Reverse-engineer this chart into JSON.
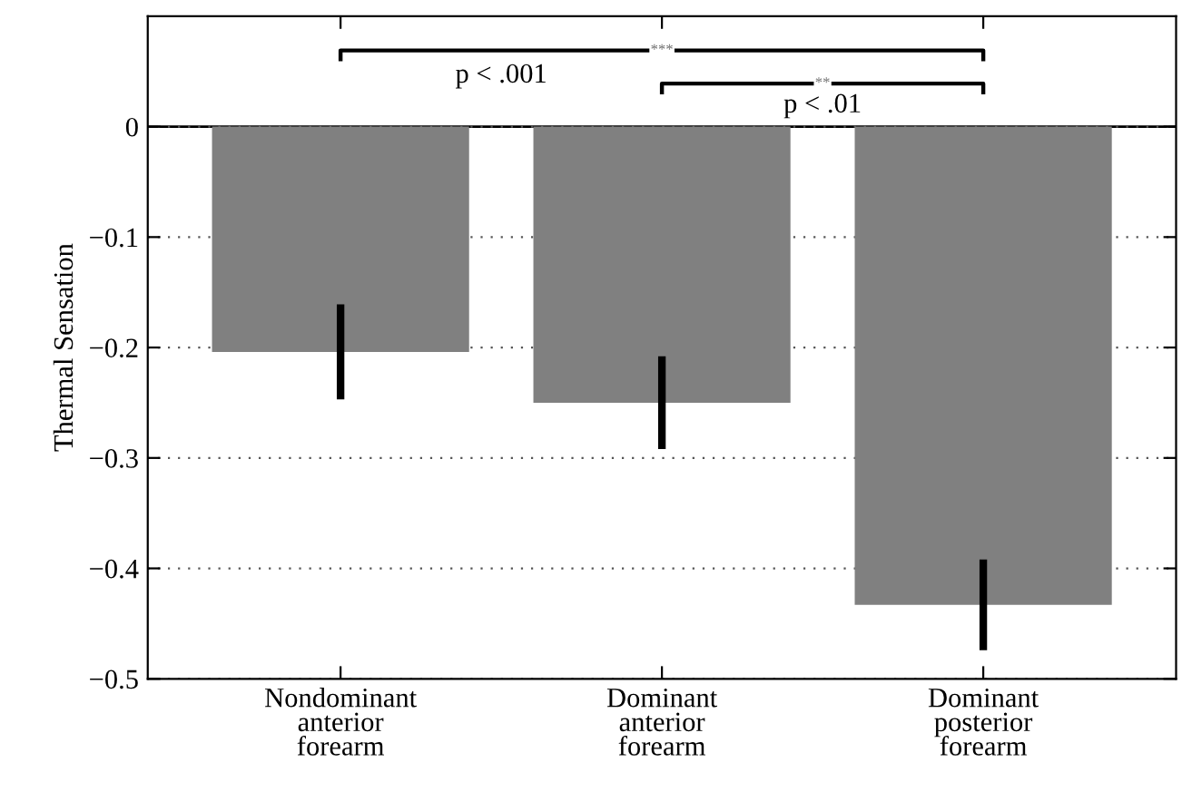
{
  "chart_data": {
    "type": "bar",
    "ylabel": "Thermal Sensation",
    "categories": [
      "Nondominant\nanterior\nforearm",
      "Dominant\nanterior\nforearm",
      "Dominant\nposterior\nforearm"
    ],
    "values": [
      -0.204,
      -0.25,
      -0.433
    ],
    "errors": [
      0.043,
      0.042,
      0.041
    ],
    "color": "#808080",
    "ylim": [
      -0.5,
      0.1
    ],
    "yticks": [
      {
        "value": -0.5,
        "label": "−0.5"
      },
      {
        "value": -0.4,
        "label": "−0.4"
      },
      {
        "value": -0.3,
        "label": "−0.3"
      },
      {
        "value": -0.2,
        "label": "−0.2"
      },
      {
        "value": -0.1,
        "label": "−0.1"
      },
      0
    ],
    "grid": "y",
    "annotations": [
      "***",
      "p < .001",
      "**",
      "p < .01"
    ]
  }
}
